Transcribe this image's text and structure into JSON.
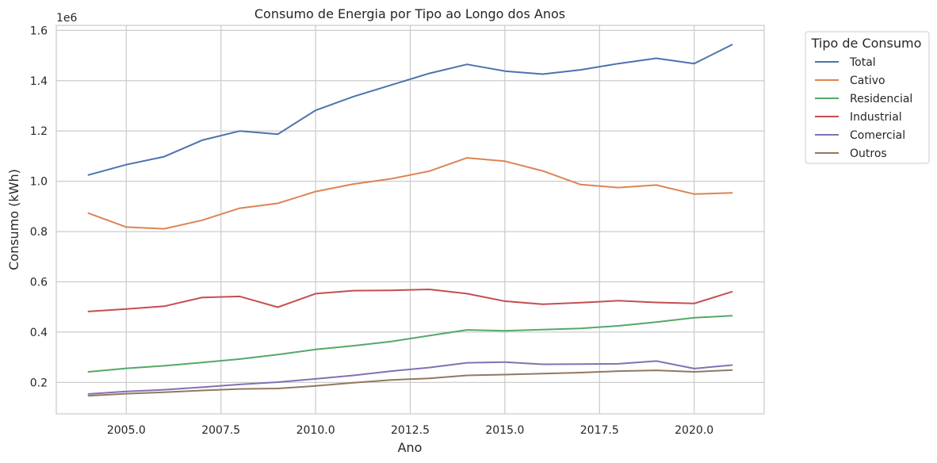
{
  "chart_data": {
    "type": "line",
    "title": "Consumo de Energia por Tipo ao Longo dos Anos",
    "xlabel": "Ano",
    "ylabel": "Consumo (kWh)",
    "y_offset_label": "1e6",
    "xlim": [
      2003.15,
      2021.85
    ],
    "ylim": [
      75000,
      1620000
    ],
    "x_ticks": [
      2005,
      2007.5,
      2010,
      2012.5,
      2015,
      2017.5,
      2020
    ],
    "x_tick_labels": [
      "2005.0",
      "2007.5",
      "2010.0",
      "2012.5",
      "2015.0",
      "2017.5",
      "2020.0"
    ],
    "y_ticks": [
      200000,
      400000,
      600000,
      800000,
      1000000,
      1200000,
      1400000,
      1600000
    ],
    "y_tick_labels": [
      "0.2",
      "0.4",
      "0.6",
      "0.8",
      "1.0",
      "1.2",
      "1.4",
      "1.6"
    ],
    "grid": true,
    "legend": {
      "title": "Tipo de Consumo",
      "placement": "outside-top-right"
    },
    "x": [
      2004,
      2005,
      2006,
      2007,
      2008,
      2009,
      2010,
      2011,
      2012,
      2013,
      2014,
      2015,
      2016,
      2017,
      2018,
      2019,
      2020,
      2021
    ],
    "series": [
      {
        "name": "Total",
        "color": "#4c72b0",
        "values": [
          1025000,
          1066000,
          1098000,
          1163000,
          1200000,
          1187000,
          1282000,
          1337000,
          1383000,
          1429000,
          1465000,
          1438000,
          1426000,
          1443000,
          1468000,
          1489000,
          1468000,
          1543000
        ]
      },
      {
        "name": "Cativo",
        "color": "#dd8452",
        "values": [
          873000,
          818000,
          811000,
          845000,
          893000,
          912000,
          959000,
          989000,
          1010000,
          1040000,
          1093000,
          1080000,
          1041000,
          987000,
          975000,
          985000,
          949000,
          954000
        ]
      },
      {
        "name": "Residencial",
        "color": "#55a868",
        "values": [
          242000,
          256000,
          266000,
          279000,
          293000,
          311000,
          331000,
          346000,
          363000,
          386000,
          409000,
          405000,
          410000,
          415000,
          425000,
          440000,
          457000,
          465000
        ]
      },
      {
        "name": "Industrial",
        "color": "#c44e52",
        "values": [
          482000,
          492000,
          503000,
          538000,
          542000,
          499000,
          553000,
          565000,
          566000,
          570000,
          553000,
          523000,
          511000,
          517000,
          525000,
          518000,
          514000,
          561000
        ]
      },
      {
        "name": "Comercial",
        "color": "#8172b3",
        "values": [
          154000,
          164000,
          171000,
          181000,
          192000,
          201000,
          214000,
          228000,
          245000,
          259000,
          278000,
          281000,
          272000,
          273000,
          274000,
          285000,
          255000,
          269000
        ]
      },
      {
        "name": "Outros",
        "color": "#937860",
        "values": [
          147000,
          155000,
          161000,
          168000,
          174000,
          176000,
          186000,
          199000,
          210000,
          216000,
          228000,
          231000,
          235000,
          239000,
          245000,
          248000,
          242000,
          249000
        ]
      }
    ]
  }
}
